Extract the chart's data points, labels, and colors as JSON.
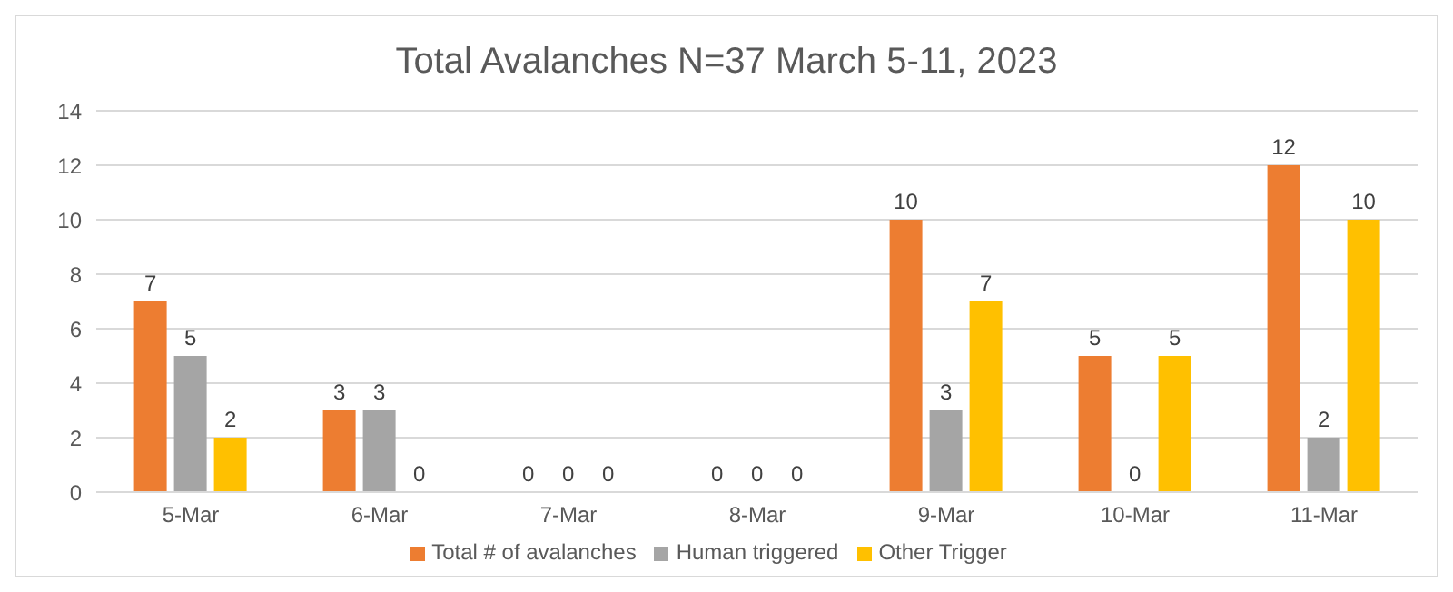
{
  "chart_data": {
    "type": "bar",
    "title": "Total Avalanches N=37 March 5-11, 2023",
    "categories": [
      "5-Mar",
      "6-Mar",
      "7-Mar",
      "8-Mar",
      "9-Mar",
      "10-Mar",
      "11-Mar"
    ],
    "series": [
      {
        "name": "Total # of avalanches",
        "color": "#ed7d31",
        "values": [
          7,
          3,
          0,
          0,
          10,
          5,
          12
        ]
      },
      {
        "name": "Human triggered",
        "color": "#a5a5a5",
        "values": [
          5,
          3,
          0,
          0,
          3,
          0,
          2
        ]
      },
      {
        "name": "Other Trigger",
        "color": "#ffc000",
        "values": [
          2,
          0,
          0,
          0,
          7,
          5,
          10
        ]
      }
    ],
    "ylim": [
      0,
      14
    ],
    "yticks": [
      0,
      2,
      4,
      6,
      8,
      10,
      12,
      14
    ],
    "grid": "y",
    "legend": "bottom",
    "data_labels": true
  }
}
